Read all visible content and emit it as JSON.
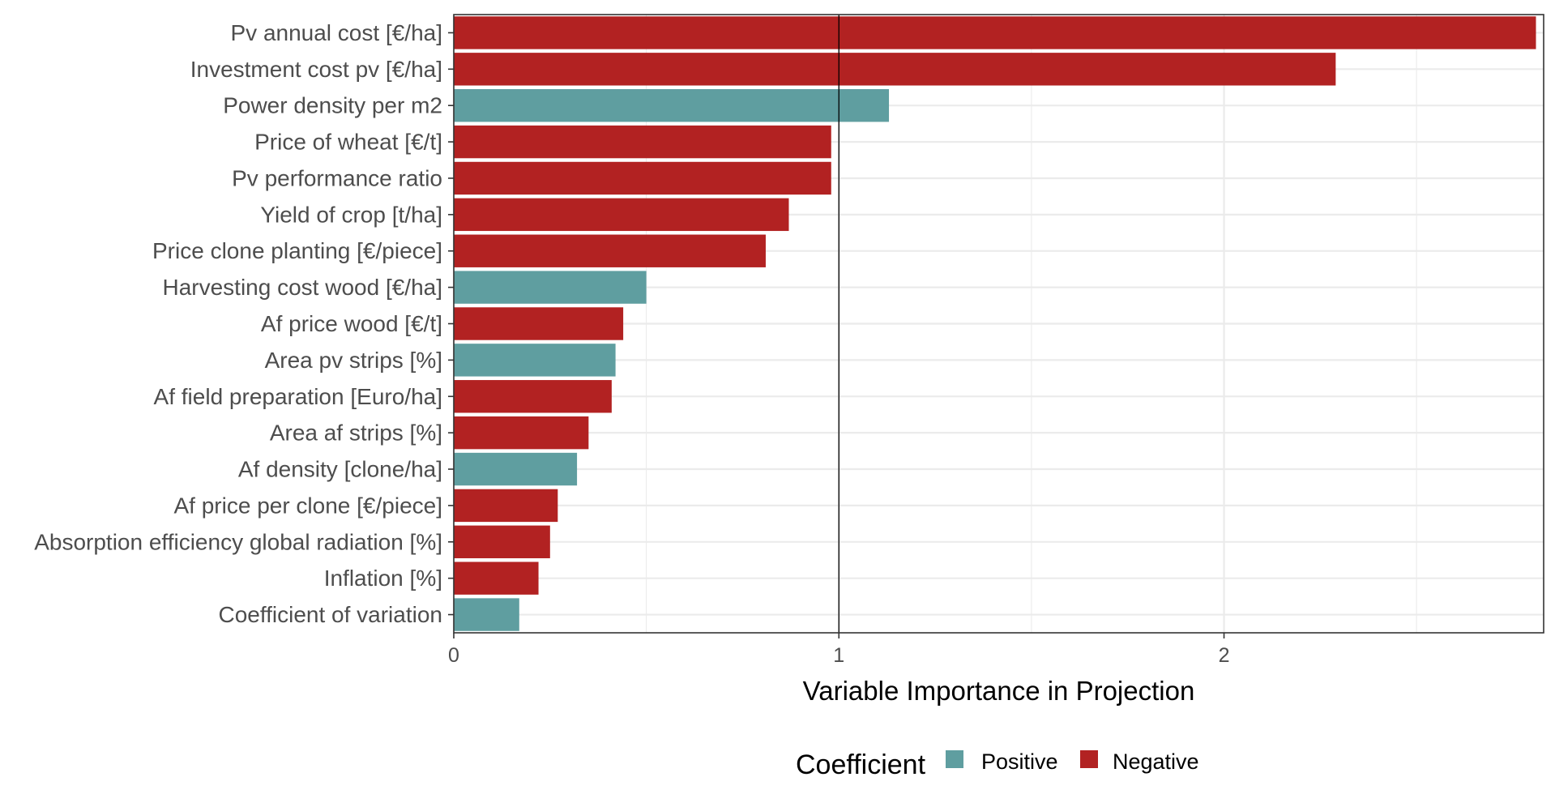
{
  "chart_data": {
    "type": "bar",
    "orientation": "horizontal",
    "categories": [
      "Pv annual cost [€/ha]",
      "Investment cost pv  [€/ha]",
      "Power density  per m2",
      "Price of wheat [€/t]",
      "Pv performance ratio",
      "Yield of crop [t/ha]",
      "Price clone planting [€/piece]",
      "Harvesting cost wood [€/ha]",
      "Af price wood [€/t]",
      "Area pv strips [%]",
      "Af field preparation [Euro/ha]",
      "Area af strips [%]",
      "Af density [clone/ha]",
      "Af price per clone [€/piece]",
      "Absorption efficiency global radiation [%]",
      "Inflation [%]",
      "Coefficient of variation"
    ],
    "values": [
      2.81,
      2.29,
      1.13,
      0.98,
      0.98,
      0.87,
      0.81,
      0.5,
      0.44,
      0.42,
      0.41,
      0.35,
      0.32,
      0.27,
      0.25,
      0.22,
      0.17
    ],
    "coefficient": [
      "Negative",
      "Negative",
      "Positive",
      "Negative",
      "Negative",
      "Negative",
      "Negative",
      "Positive",
      "Negative",
      "Positive",
      "Negative",
      "Negative",
      "Positive",
      "Negative",
      "Negative",
      "Negative",
      "Positive"
    ],
    "colors": {
      "Positive": "#5f9ea0",
      "Negative": "#b22222"
    },
    "xlabel": "Variable Importance in Projection",
    "ylabel": "",
    "xlim": [
      0,
      2.83
    ],
    "xticks": [
      0,
      1,
      2
    ],
    "reference_line": 1,
    "grid": true,
    "legend": {
      "title": "Coefficient",
      "position": "bottom",
      "entries": [
        "Positive",
        "Negative"
      ]
    }
  }
}
